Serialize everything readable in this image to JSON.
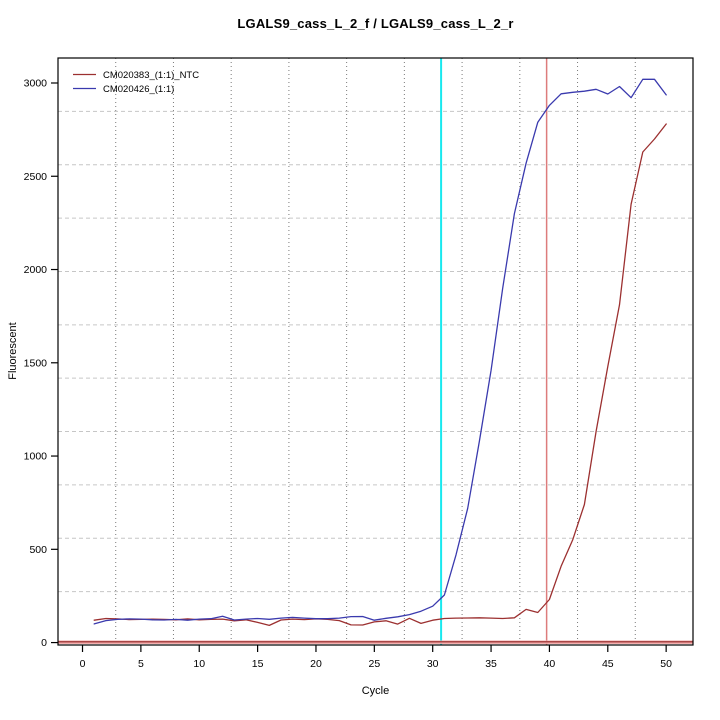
{
  "chart_data": {
    "type": "line",
    "title": "LGALS9_cass_L_2_f / LGALS9_cass_L_2_r",
    "xlabel": "Cycle",
    "ylabel": "Fluorescent",
    "x_ticks": [
      0,
      5,
      10,
      15,
      20,
      25,
      30,
      35,
      40,
      45,
      50
    ],
    "y_ticks": [
      0,
      500,
      1000,
      1500,
      2000,
      2500,
      3000
    ],
    "xlim": [
      -2.1,
      52.3
    ],
    "ylim": [
      -13,
      3134
    ],
    "grid": {
      "nx": 11,
      "ny": 11,
      "v_color": "#7a7a7a",
      "v_dash": "1 3",
      "h_color": "#c6c6c6",
      "h_dash": "4 3"
    },
    "legend": {
      "position": "top-left",
      "entries": [
        {
          "label": "CM020383_(1:1)_NTC",
          "color": "#9c3030"
        },
        {
          "label": "CM020426_(1:1)",
          "color": "#3a3aae"
        }
      ]
    },
    "x": [
      1,
      2,
      3,
      4,
      5,
      6,
      7,
      8,
      9,
      10,
      11,
      12,
      13,
      14,
      15,
      16,
      17,
      18,
      19,
      20,
      21,
      22,
      23,
      24,
      25,
      26,
      27,
      28,
      29,
      30,
      31,
      32,
      33,
      34,
      35,
      36,
      37,
      38,
      39,
      40,
      41,
      42,
      43,
      44,
      45,
      46,
      47,
      48,
      49,
      50
    ],
    "series": [
      {
        "name": "CM020383_(1:1)_NTC",
        "color": "#9c3030",
        "values": [
          120,
          129,
          127,
          123,
          124,
          126,
          124,
          122,
          127,
          122,
          124,
          126,
          117,
          122,
          108,
          92,
          121,
          126,
          123,
          127,
          124,
          118,
          95,
          94,
          111,
          117,
          99,
          130,
          103,
          120,
          129,
          131,
          132,
          133,
          131,
          129,
          133,
          178,
          161,
          231,
          409,
          552,
          740,
          1132,
          1480,
          1811,
          2350,
          2630,
          2700,
          2780
        ]
      },
      {
        "name": "CM020426_(1:1)",
        "color": "#3a3aae",
        "values": [
          100,
          118,
          124,
          127,
          126,
          122,
          121,
          124,
          120,
          126,
          128,
          141,
          121,
          126,
          129,
          125,
          131,
          135,
          131,
          128,
          128,
          131,
          139,
          140,
          120,
          130,
          138,
          150,
          168,
          195,
          255,
          470,
          720,
          1080,
          1460,
          1900,
          2300,
          2570,
          2790,
          2880,
          2942,
          2950,
          2956,
          2966,
          2941,
          2981,
          2921,
          3020,
          3020,
          2936
        ]
      }
    ],
    "vlines": [
      {
        "x": 30.72,
        "color": "#18e8ee",
        "width": 2
      },
      {
        "x": 39.76,
        "color": "#dd7c7c",
        "width": 1.5
      }
    ],
    "hlines": [
      {
        "y": 2,
        "color": "#f2a6a6",
        "width": 3.4
      },
      {
        "y": 4,
        "color": "#8f2626",
        "width": 1.2
      }
    ]
  }
}
